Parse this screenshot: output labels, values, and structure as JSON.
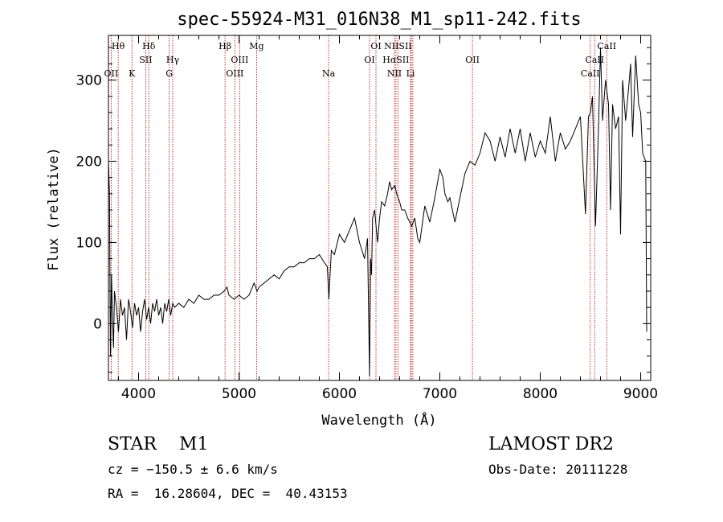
{
  "chart_data": {
    "type": "line",
    "title": "spec-55924-M31_016N38_M1_sp11-242.fits",
    "xlabel": "Wavelength (Å)",
    "ylabel": "Flux (relative)",
    "xlim": [
      3700,
      9100
    ],
    "ylim": [
      -70,
      355
    ],
    "xticks": [
      4000,
      5000,
      6000,
      7000,
      8000,
      9000
    ],
    "yticks": [
      0,
      100,
      200,
      300
    ],
    "grid": false,
    "series": [
      {
        "name": "flux",
        "x": [
          3700,
          3710,
          3720,
          3730,
          3740,
          3750,
          3760,
          3780,
          3800,
          3820,
          3840,
          3860,
          3880,
          3900,
          3920,
          3940,
          3960,
          3980,
          4000,
          4020,
          4040,
          4060,
          4080,
          4100,
          4120,
          4140,
          4160,
          4180,
          4200,
          4220,
          4240,
          4260,
          4280,
          4300,
          4320,
          4340,
          4360,
          4400,
          4450,
          4500,
          4550,
          4600,
          4650,
          4700,
          4750,
          4800,
          4850,
          4880,
          4900,
          4950,
          5000,
          5050,
          5100,
          5150,
          5180,
          5200,
          5250,
          5300,
          5350,
          5400,
          5450,
          5500,
          5550,
          5600,
          5650,
          5700,
          5750,
          5800,
          5850,
          5880,
          5895,
          5905,
          5920,
          5950,
          6000,
          6050,
          6100,
          6150,
          6200,
          6250,
          6280,
          6300,
          6310,
          6320,
          6330,
          6350,
          6380,
          6400,
          6420,
          6450,
          6480,
          6500,
          6520,
          6550,
          6570,
          6600,
          6620,
          6650,
          6680,
          6700,
          6720,
          6750,
          6780,
          6800,
          6850,
          6900,
          6950,
          7000,
          7030,
          7050,
          7080,
          7100,
          7150,
          7200,
          7250,
          7300,
          7350,
          7400,
          7450,
          7500,
          7550,
          7600,
          7650,
          7700,
          7750,
          7800,
          7850,
          7900,
          7950,
          8000,
          8050,
          8100,
          8150,
          8200,
          8250,
          8300,
          8350,
          8400,
          8450,
          8480,
          8500,
          8520,
          8550,
          8580,
          8600,
          8620,
          8650,
          8680,
          8700,
          8720,
          8750,
          8780,
          8800,
          8820,
          8850,
          8880,
          8900,
          8920,
          8950,
          8980,
          9000,
          9020,
          9050,
          9060
        ],
        "y": [
          200,
          160,
          -40,
          60,
          10,
          -30,
          40,
          20,
          -10,
          30,
          10,
          20,
          -20,
          30,
          15,
          -5,
          25,
          10,
          20,
          -10,
          15,
          30,
          5,
          20,
          0,
          25,
          15,
          30,
          10,
          20,
          0,
          25,
          15,
          30,
          10,
          25,
          20,
          25,
          20,
          30,
          25,
          35,
          30,
          30,
          35,
          35,
          40,
          45,
          35,
          30,
          35,
          30,
          35,
          50,
          40,
          45,
          50,
          55,
          60,
          55,
          65,
          70,
          70,
          75,
          75,
          80,
          80,
          85,
          75,
          70,
          30,
          55,
          90,
          85,
          110,
          100,
          115,
          130,
          100,
          80,
          105,
          -65,
          80,
          60,
          130,
          140,
          100,
          130,
          150,
          145,
          160,
          175,
          165,
          170,
          160,
          150,
          140,
          140,
          130,
          125,
          120,
          130,
          105,
          100,
          145,
          125,
          155,
          190,
          180,
          160,
          150,
          155,
          125,
          155,
          185,
          200,
          195,
          210,
          235,
          225,
          200,
          230,
          205,
          240,
          210,
          240,
          200,
          235,
          205,
          225,
          210,
          255,
          200,
          235,
          215,
          225,
          240,
          255,
          135,
          255,
          260,
          280,
          120,
          240,
          340,
          250,
          300,
          270,
          140,
          270,
          240,
          255,
          110,
          300,
          250,
          290,
          320,
          230,
          330,
          270,
          260,
          210,
          200,
          -10
        ],
        "color": "#000000"
      }
    ],
    "lines": [
      {
        "label": "Hθ",
        "x": 3797,
        "row": 1
      },
      {
        "label": "OII",
        "x": 3727,
        "row": 3
      },
      {
        "label": "K",
        "x": 3934,
        "row": 3
      },
      {
        "label": "Hδ",
        "x": 4102,
        "row": 1
      },
      {
        "label": "SII",
        "x": 4072,
        "row": 2
      },
      {
        "label": "Hγ",
        "x": 4340,
        "row": 2
      },
      {
        "label": "G",
        "x": 4305,
        "row": 3
      },
      {
        "label": "Hβ",
        "x": 4861,
        "row": 1
      },
      {
        "label": "OIII",
        "x": 5007,
        "row": 2
      },
      {
        "label": "OIII",
        "x": 4959,
        "row": 3
      },
      {
        "label": "Mg",
        "x": 5175,
        "row": 1
      },
      {
        "label": "Na",
        "x": 5893,
        "row": 3
      },
      {
        "label": "OI",
        "x": 6364,
        "row": 1
      },
      {
        "label": "OI",
        "x": 6300,
        "row": 2
      },
      {
        "label": "NIISII",
        "x": 6583,
        "row": 1
      },
      {
        "label": "HαSII",
        "x": 6563,
        "row": 2
      },
      {
        "label": "NII",
        "x": 6548,
        "row": 3
      },
      {
        "label": "Li",
        "x": 6708,
        "row": 3
      },
      {
        "label": "OII",
        "x": 7325,
        "row": 2
      },
      {
        "label": "CaII",
        "x": 8662,
        "row": 1
      },
      {
        "label": "CaII",
        "x": 8542,
        "row": 2
      },
      {
        "label": "CaII",
        "x": 8498,
        "row": 3
      }
    ],
    "line_marker_positions": [
      3727,
      3797,
      3934,
      4072,
      4102,
      4305,
      4340,
      4861,
      4959,
      5007,
      5175,
      5893,
      6300,
      6364,
      6548,
      6563,
      6583,
      6716,
      6731,
      6708,
      7325,
      8498,
      8542,
      8662
    ]
  },
  "info": {
    "class_line": "STAR    M1",
    "survey": "LAMOST DR2",
    "cz": "cz = −150.5 ± 6.6 km/s",
    "obs_date": "Obs-Date: 20111228",
    "coords": "RA =  16.28604, DEC =  40.43153"
  }
}
